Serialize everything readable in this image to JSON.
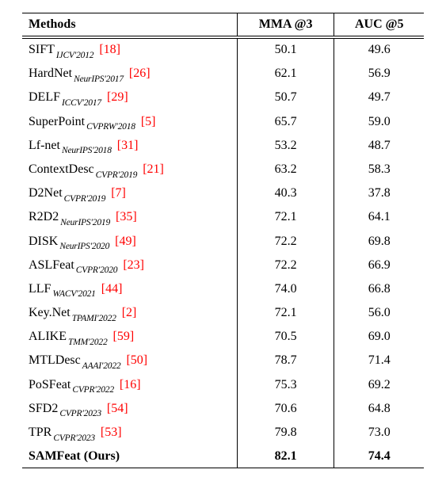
{
  "table": {
    "headers": {
      "methods": "Methods",
      "mma": "MMA @3",
      "auc": "AUC @5"
    },
    "rows": [
      {
        "name": "SIFT",
        "venue": "IJCV'2012",
        "ref": "[18]",
        "mma": "50.1",
        "auc": "49.6",
        "bold": false
      },
      {
        "name": "HardNet",
        "venue": "NeurIPS'2017",
        "ref": "[26]",
        "mma": "62.1",
        "auc": "56.9",
        "bold": false
      },
      {
        "name": "DELF",
        "venue": "ICCV'2017",
        "ref": "[29]",
        "mma": "50.7",
        "auc": "49.7",
        "bold": false
      },
      {
        "name": "SuperPoint",
        "venue": "CVPRW'2018",
        "ref": "[5]",
        "mma": "65.7",
        "auc": "59.0",
        "bold": false
      },
      {
        "name": "Lf-net",
        "venue": "NeurIPS'2018",
        "ref": "[31]",
        "mma": "53.2",
        "auc": "48.7",
        "bold": false
      },
      {
        "name": "ContextDesc",
        "venue": "CVPR'2019",
        "ref": "[21]",
        "mma": "63.2",
        "auc": "58.3",
        "bold": false
      },
      {
        "name": "D2Net",
        "venue": "CVPR'2019",
        "ref": "[7]",
        "mma": "40.3",
        "auc": "37.8",
        "bold": false
      },
      {
        "name": "R2D2",
        "venue": "NeurIPS'2019",
        "ref": "[35]",
        "mma": "72.1",
        "auc": "64.1",
        "bold": false
      },
      {
        "name": "DISK",
        "venue": "NeurIPS'2020",
        "ref": "[49]",
        "mma": "72.2",
        "auc": "69.8",
        "bold": false
      },
      {
        "name": "ASLFeat",
        "venue": "CVPR'2020",
        "ref": "[23]",
        "mma": "72.2",
        "auc": "66.9",
        "bold": false
      },
      {
        "name": "LLF",
        "venue": "WACV'2021",
        "ref": "[44]",
        "mma": "74.0",
        "auc": "66.8",
        "bold": false
      },
      {
        "name": "Key.Net",
        "venue": "TPAMI'2022",
        "ref": "[2]",
        "mma": "72.1",
        "auc": "56.0",
        "bold": false
      },
      {
        "name": "ALIKE",
        "venue": "TMM'2022",
        "ref": "[59]",
        "mma": "70.5",
        "auc": "69.0",
        "bold": false
      },
      {
        "name": "MTLDesc",
        "venue": "AAAI'2022",
        "ref": "[50]",
        "mma": "78.7",
        "auc": "71.4",
        "bold": false
      },
      {
        "name": "PoSFeat",
        "venue": "CVPR'2022",
        "ref": "[16]",
        "mma": "75.3",
        "auc": "69.2",
        "bold": false
      },
      {
        "name": "SFD2",
        "venue": "CVPR'2023",
        "ref": "[54]",
        "mma": "70.6",
        "auc": "64.8",
        "bold": false
      },
      {
        "name": "TPR",
        "venue": "CVPR'2023",
        "ref": "[53]",
        "mma": "79.8",
        "auc": "73.0",
        "bold": false
      },
      {
        "name": "SAMFeat (Ours)",
        "venue": "",
        "ref": "",
        "mma": "82.1",
        "auc": "74.4",
        "bold": true
      }
    ],
    "colors": {
      "ref": "#ff0000",
      "text": "#000000",
      "rule": "#000000"
    }
  }
}
